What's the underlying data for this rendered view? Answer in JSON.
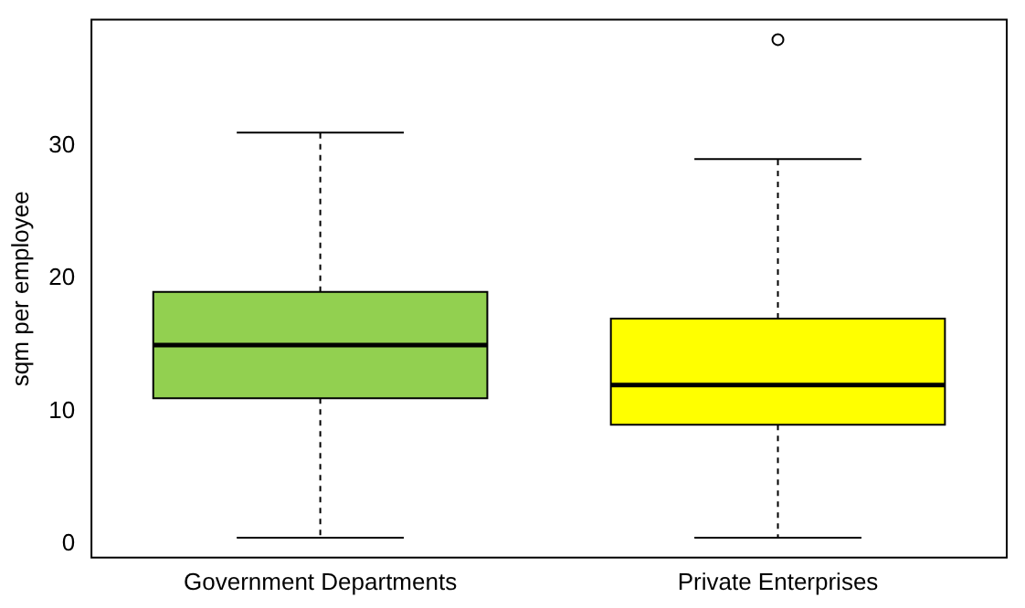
{
  "chart_data": {
    "type": "box",
    "ylabel": "sqm per employee",
    "categories": [
      "Government Departments",
      "Private Enterprises"
    ],
    "colors": [
      "#92d050",
      "#ffff00"
    ],
    "boxes": [
      {
        "low": 0.5,
        "q1": 11,
        "median": 15,
        "q3": 19,
        "high": 31
      },
      {
        "low": 0.5,
        "q1": 9,
        "median": 12,
        "q3": 17,
        "high": 29,
        "outliers": [
          38
        ]
      }
    ],
    "ylim": [
      -1,
      39.5
    ],
    "yticks": [
      0,
      10,
      20,
      30
    ],
    "grid": false,
    "legend": false
  }
}
